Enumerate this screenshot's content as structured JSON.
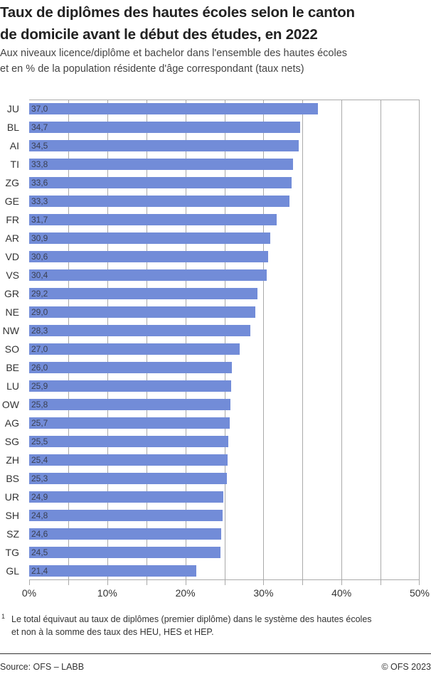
{
  "header": {
    "title_line1": "Taux de diplômes des hautes écoles selon le canton",
    "title_line2": "de domicile avant le début des études, en 2022",
    "subtitle_line1": "Aux niveaux licence/diplôme et bachelor dans l'ensemble des hautes écoles",
    "subtitle_line2": "et en % de la population résidente d'âge correspondant (taux nets)"
  },
  "footnote": {
    "marker": "1",
    "line1": "Le total équivaut au taux de diplômes (premier diplôme) dans le système des hautes écoles",
    "line2": "et non à la somme des taux des HEU, HES et HEP."
  },
  "footer": {
    "source": "Source: OFS – LABB",
    "copyright": "© OFS 2023"
  },
  "colors": {
    "bar": "#728cd8",
    "grid": "#aaaaaa"
  },
  "chart_data": {
    "type": "bar",
    "orientation": "horizontal",
    "title": "Taux de diplômes des hautes écoles selon le canton de domicile avant le début des études, en 2022",
    "subtitle": "Aux niveaux licence/diplôme et bachelor dans l'ensemble des hautes écoles et en % de la population résidente d'âge correspondant (taux nets)",
    "xlabel": "",
    "ylabel": "",
    "xlim": [
      0,
      50
    ],
    "x_ticks": [
      "0%",
      "10%",
      "20%",
      "30%",
      "40%",
      "50%"
    ],
    "grid": true,
    "grid_step": 5,
    "legend": null,
    "categories": [
      "JU",
      "BL",
      "AI",
      "TI",
      "ZG",
      "GE",
      "FR",
      "AR",
      "VD",
      "VS",
      "GR",
      "NE",
      "NW",
      "SO",
      "BE",
      "LU",
      "OW",
      "AG",
      "SG",
      "ZH",
      "BS",
      "UR",
      "SH",
      "SZ",
      "TG",
      "GL"
    ],
    "values": [
      37.0,
      34.7,
      34.5,
      33.8,
      33.6,
      33.3,
      31.7,
      30.9,
      30.6,
      30.4,
      29.2,
      29.0,
      28.3,
      27.0,
      26.0,
      25.9,
      25.8,
      25.7,
      25.5,
      25.4,
      25.3,
      24.9,
      24.8,
      24.6,
      24.5,
      21.4
    ],
    "value_labels": [
      "37,0",
      "34,7",
      "34,5",
      "33,8",
      "33,6",
      "33,3",
      "31,7",
      "30,9",
      "30,6",
      "30,4",
      "29,2",
      "29,0",
      "28,3",
      "27,0",
      "26,0",
      "25,9",
      "25,8",
      "25,7",
      "25,5",
      "25,4",
      "25,3",
      "24,9",
      "24,8",
      "24,6",
      "24,5",
      "21,4"
    ]
  }
}
